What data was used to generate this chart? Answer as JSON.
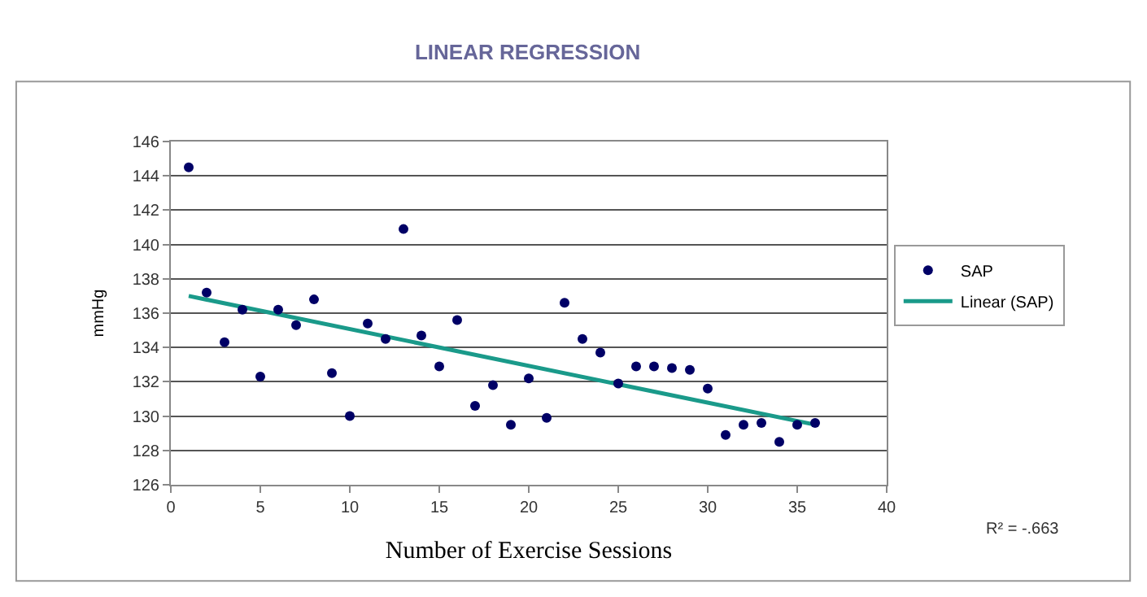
{
  "chart_data": {
    "type": "scatter",
    "title": "LINEAR REGRESSION",
    "xlabel": "Number of Exercise Sessions",
    "ylabel": "mmHg",
    "annotations": [
      "R² = -.663"
    ],
    "xlim": [
      0,
      40
    ],
    "xticks": [
      0,
      5,
      10,
      15,
      20,
      25,
      30,
      35,
      40
    ],
    "ylim": [
      126,
      146
    ],
    "yticks": [
      126,
      128,
      130,
      132,
      134,
      136,
      138,
      140,
      142,
      144,
      146
    ],
    "grid": "y",
    "legend": "right",
    "marker": "circle",
    "series": [
      {
        "name": "SAP",
        "color": "#000066",
        "x": [
          1,
          2,
          3,
          4,
          5,
          6,
          7,
          8,
          9,
          10,
          11,
          12,
          13,
          14,
          15,
          16,
          17,
          18,
          19,
          20,
          21,
          22,
          23,
          24,
          25,
          26,
          27,
          28,
          29,
          30,
          31,
          32,
          33,
          34,
          35,
          36
        ],
        "values": [
          144.5,
          137.2,
          134.3,
          136.2,
          132.3,
          136.2,
          135.3,
          136.8,
          132.5,
          130.0,
          135.4,
          134.5,
          140.9,
          134.7,
          132.9,
          135.6,
          130.6,
          131.8,
          129.5,
          132.2,
          129.9,
          136.6,
          134.5,
          133.7,
          131.9,
          132.9,
          132.9,
          132.8,
          132.7,
          131.6,
          128.9,
          129.5,
          129.6,
          128.5,
          129.5,
          129.6
        ]
      },
      {
        "name": "Linear (SAP)",
        "type": "line",
        "color": "#1a9a8a",
        "line_style": "solid",
        "marker": "none",
        "x": [
          1,
          36
        ],
        "values": [
          137.0,
          129.5
        ]
      }
    ]
  }
}
